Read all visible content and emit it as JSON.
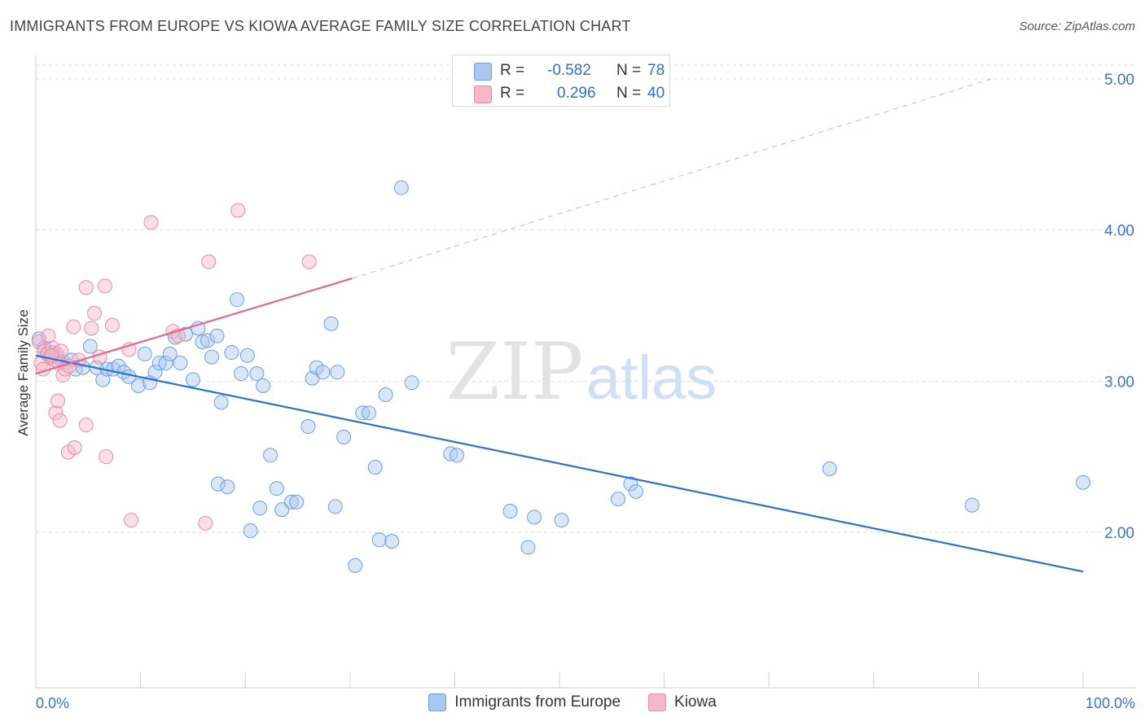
{
  "title": "IMMIGRANTS FROM EUROPE VS KIOWA AVERAGE FAMILY SIZE CORRELATION CHART",
  "source": "Source: ZipAtlas.com",
  "watermark": {
    "zip": "ZIP",
    "atlas": "atlas"
  },
  "colors": {
    "blue_fill": "#a9c8f0",
    "blue_stroke": "#6a9fe0",
    "blue_line": "#2e6fd2",
    "pink_fill": "#f5b8c9",
    "pink_stroke": "#e98aa6",
    "pink_line": "#e06892",
    "grid": "#dddddd",
    "tick_label": "#3b73c8"
  },
  "stats": {
    "row1": {
      "r_label": "R =",
      "r_value": "-0.582",
      "n_label": "N =",
      "n_value": "78"
    },
    "row2": {
      "r_label": "R =",
      "r_value": "0.296",
      "n_label": "N =",
      "n_value": "40"
    }
  },
  "legend": {
    "series1": "Immigrants from Europe",
    "series2": "Kiowa"
  },
  "chart_data": {
    "type": "scatter",
    "title": "IMMIGRANTS FROM EUROPE VS KIOWA AVERAGE FAMILY SIZE CORRELATION CHART",
    "xlabel": "",
    "ylabel": "Average Family Size",
    "xlim": [
      0,
      100
    ],
    "ylim": [
      1.0,
      5.1
    ],
    "x_tick_labels": [
      "0.0%",
      "100.0%"
    ],
    "y_ticks": [
      2.0,
      3.0,
      4.0,
      5.0
    ],
    "y_tick_labels": [
      "2.00",
      "3.00",
      "4.00",
      "5.00"
    ],
    "grid": "horizontal dashed",
    "legend_position": "bottom-center",
    "series": [
      {
        "name": "Immigrants from Europe",
        "r": -0.582,
        "n": 78,
        "trend": {
          "x": [
            0,
            100
          ],
          "y": [
            3.17,
            1.74
          ]
        },
        "points": [
          [
            0.3,
            3.28
          ],
          [
            0.8,
            3.22
          ],
          [
            1.2,
            3.18
          ],
          [
            1.6,
            3.19
          ],
          [
            2.0,
            3.16
          ],
          [
            2.6,
            3.13
          ],
          [
            3.4,
            3.14
          ],
          [
            3.8,
            3.08
          ],
          [
            4.5,
            3.09
          ],
          [
            5.2,
            3.23
          ],
          [
            5.8,
            3.09
          ],
          [
            6.4,
            3.01
          ],
          [
            6.8,
            3.08
          ],
          [
            7.4,
            3.08
          ],
          [
            7.9,
            3.1
          ],
          [
            8.4,
            3.06
          ],
          [
            8.9,
            3.03
          ],
          [
            9.8,
            2.97
          ],
          [
            10.4,
            3.18
          ],
          [
            10.9,
            2.99
          ],
          [
            11.4,
            3.06
          ],
          [
            11.8,
            3.12
          ],
          [
            12.4,
            3.12
          ],
          [
            12.8,
            3.18
          ],
          [
            13.3,
            3.29
          ],
          [
            13.8,
            3.12
          ],
          [
            14.3,
            3.31
          ],
          [
            15.0,
            3.01
          ],
          [
            15.5,
            3.35
          ],
          [
            15.9,
            3.26
          ],
          [
            16.4,
            3.27
          ],
          [
            16.8,
            3.16
          ],
          [
            17.3,
            3.3
          ],
          [
            17.7,
            2.86
          ],
          [
            18.7,
            3.19
          ],
          [
            19.2,
            3.54
          ],
          [
            19.6,
            3.05
          ],
          [
            20.2,
            3.17
          ],
          [
            21.1,
            3.05
          ],
          [
            21.7,
            2.97
          ],
          [
            22.4,
            2.51
          ],
          [
            23.0,
            2.29
          ],
          [
            23.5,
            2.15
          ],
          [
            24.4,
            2.2
          ],
          [
            24.9,
            2.2
          ],
          [
            26.0,
            2.7
          ],
          [
            26.4,
            3.02
          ],
          [
            26.8,
            3.09
          ],
          [
            27.4,
            3.06
          ],
          [
            28.2,
            3.38
          ],
          [
            28.8,
            3.06
          ],
          [
            29.4,
            2.63
          ],
          [
            30.5,
            1.78
          ],
          [
            31.2,
            2.79
          ],
          [
            31.8,
            2.79
          ],
          [
            32.4,
            2.43
          ],
          [
            32.8,
            1.95
          ],
          [
            33.4,
            2.91
          ],
          [
            34.0,
            1.94
          ],
          [
            34.9,
            4.28
          ],
          [
            35.9,
            2.99
          ],
          [
            39.6,
            2.52
          ],
          [
            40.2,
            2.51
          ],
          [
            45.3,
            2.14
          ],
          [
            47.6,
            2.1
          ],
          [
            47.0,
            1.9
          ],
          [
            50.2,
            2.08
          ],
          [
            55.6,
            2.22
          ],
          [
            56.8,
            2.32
          ],
          [
            57.3,
            2.27
          ],
          [
            75.8,
            2.42
          ],
          [
            89.4,
            2.18
          ],
          [
            100.0,
            2.33
          ],
          [
            17.4,
            2.32
          ],
          [
            18.3,
            2.3
          ],
          [
            20.5,
            2.01
          ],
          [
            28.6,
            2.17
          ],
          [
            21.4,
            2.16
          ]
        ]
      },
      {
        "name": "Kiowa",
        "r": 0.296,
        "n": 40,
        "trend": {
          "x": [
            0,
            30.2
          ],
          "y": [
            3.05,
            3.68
          ]
        },
        "trend_extended": {
          "x": [
            30.2,
            91.2
          ],
          "y": [
            3.68,
            5.0
          ]
        },
        "points": [
          [
            0.3,
            3.26
          ],
          [
            0.5,
            3.12
          ],
          [
            0.8,
            3.2
          ],
          [
            1.1,
            3.18
          ],
          [
            1.4,
            3.16
          ],
          [
            1.6,
            3.22
          ],
          [
            1.8,
            3.14
          ],
          [
            2.0,
            3.18
          ],
          [
            2.2,
            3.12
          ],
          [
            2.4,
            3.2
          ],
          [
            1.9,
            2.79
          ],
          [
            2.1,
            2.87
          ],
          [
            2.3,
            2.74
          ],
          [
            2.6,
            3.04
          ],
          [
            2.8,
            3.08
          ],
          [
            3.2,
            3.1
          ],
          [
            3.6,
            3.36
          ],
          [
            3.1,
            2.53
          ],
          [
            3.7,
            2.56
          ],
          [
            4.1,
            3.14
          ],
          [
            4.8,
            3.62
          ],
          [
            4.8,
            2.71
          ],
          [
            5.3,
            3.35
          ],
          [
            5.6,
            3.45
          ],
          [
            6.1,
            3.16
          ],
          [
            6.6,
            3.63
          ],
          [
            6.7,
            2.5
          ],
          [
            7.3,
            3.37
          ],
          [
            8.9,
            3.21
          ],
          [
            9.1,
            2.08
          ],
          [
            11.0,
            4.05
          ],
          [
            13.1,
            3.33
          ],
          [
            13.6,
            3.3
          ],
          [
            16.2,
            2.06
          ],
          [
            16.5,
            3.79
          ],
          [
            19.3,
            4.13
          ],
          [
            26.1,
            3.79
          ],
          [
            1.2,
            3.3
          ],
          [
            0.7,
            3.08
          ],
          [
            1.5,
            3.17
          ]
        ]
      }
    ]
  }
}
